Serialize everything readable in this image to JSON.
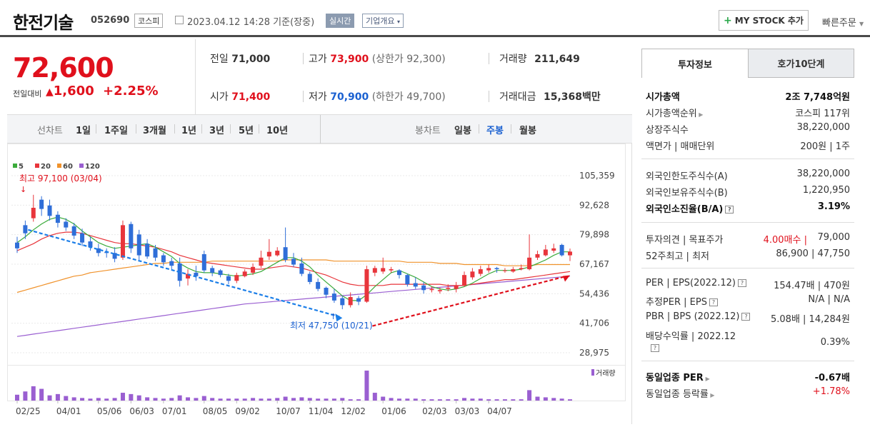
{
  "header": {
    "name": "한전기술",
    "code": "052690",
    "market": "코스피",
    "datetime": "2023.04.12 14:28",
    "basis": "기준(장중)",
    "realtime": "실시간",
    "corp_info": "기업개요",
    "mystock": "MY STOCK 추가",
    "quick_order": "빠른주문"
  },
  "price": {
    "current": "72,600",
    "change_label": "전일대비",
    "change": "1,600",
    "change_pct": "+2.25%"
  },
  "summary": {
    "prev_label": "전일",
    "prev": "71,000",
    "high_label": "고가",
    "high": "73,900",
    "upper_limit": "(상한가 92,300)",
    "volume_label": "거래량",
    "volume": "211,649",
    "open_label": "시가",
    "open": "71,400",
    "low_label": "저가",
    "low": "70,900",
    "lower_limit": "(하한가 49,700)",
    "amount_label": "거래대금",
    "amount": "15,368",
    "amount_unit": "백만"
  },
  "chart_tabs": {
    "line_label": "선차트",
    "periods": [
      "1일",
      "1주일",
      "3개월",
      "1년",
      "3년",
      "5년",
      "10년"
    ],
    "candle_label": "봉차트",
    "candles": [
      "일봉",
      "주봉",
      "월봉"
    ],
    "active_candle": "주봉"
  },
  "chart_data": {
    "type": "line",
    "legend": [
      "5",
      "20",
      "60",
      "120"
    ],
    "legend_colors": [
      "#3bab3b",
      "#e8353b",
      "#f0922b",
      "#9a5fd1"
    ],
    "y_ticks": [
      "105,359",
      "92,628",
      "79,898",
      "67,167",
      "54,436",
      "41,706",
      "28,975"
    ],
    "ylim": [
      28975,
      105359
    ],
    "x_ticks": [
      "02/25",
      "04/01",
      "05/06",
      "06/03",
      "07/01",
      "08/05",
      "09/02",
      "10/07",
      "11/04",
      "12/02",
      "01/06",
      "02/03",
      "03/03",
      "04/07"
    ],
    "high_annotation": "최고 97,100 (03/04)",
    "low_annotation": "최저 47,750 (10/21)",
    "volume_label": "거래량",
    "candles": [
      {
        "o": 76500,
        "c": 74000,
        "h": 79000,
        "l": 72000
      },
      {
        "o": 84000,
        "c": 80500,
        "h": 86000,
        "l": 78000
      },
      {
        "o": 87000,
        "c": 91500,
        "h": 97100,
        "l": 85500
      },
      {
        "o": 95000,
        "c": 91000,
        "h": 96500,
        "l": 88000
      },
      {
        "o": 92500,
        "c": 88000,
        "h": 95000,
        "l": 86000
      },
      {
        "o": 88500,
        "c": 85000,
        "h": 90000,
        "l": 83000
      },
      {
        "o": 85500,
        "c": 83000,
        "h": 87000,
        "l": 81500
      },
      {
        "o": 83500,
        "c": 79500,
        "h": 85000,
        "l": 78000
      },
      {
        "o": 80500,
        "c": 76500,
        "h": 82500,
        "l": 75000
      },
      {
        "o": 77000,
        "c": 74500,
        "h": 79000,
        "l": 73000
      },
      {
        "o": 74000,
        "c": 72000,
        "h": 76000,
        "l": 70500
      },
      {
        "o": 72500,
        "c": 72000,
        "h": 74000,
        "l": 70000
      },
      {
        "o": 72000,
        "c": 69500,
        "h": 74500,
        "l": 68000
      },
      {
        "o": 70000,
        "c": 84000,
        "h": 86000,
        "l": 69000
      },
      {
        "o": 84500,
        "c": 74000,
        "h": 85500,
        "l": 72000
      },
      {
        "o": 80000,
        "c": 71000,
        "h": 82000,
        "l": 69000
      },
      {
        "o": 76000,
        "c": 70500,
        "h": 78000,
        "l": 69500
      },
      {
        "o": 74000,
        "c": 70000,
        "h": 75500,
        "l": 68500
      },
      {
        "o": 71000,
        "c": 68000,
        "h": 72000,
        "l": 66500
      },
      {
        "o": 68500,
        "c": 66500,
        "h": 70000,
        "l": 65000
      },
      {
        "o": 67500,
        "c": 60000,
        "h": 70000,
        "l": 57500
      },
      {
        "o": 61000,
        "c": 63000,
        "h": 65000,
        "l": 58000
      },
      {
        "o": 63500,
        "c": 62000,
        "h": 66500,
        "l": 60000
      },
      {
        "o": 71500,
        "c": 64500,
        "h": 73000,
        "l": 63500
      },
      {
        "o": 65500,
        "c": 63500,
        "h": 66500,
        "l": 62000
      },
      {
        "o": 64500,
        "c": 62500,
        "h": 65000,
        "l": 61500
      },
      {
        "o": 62000,
        "c": 60000,
        "h": 63000,
        "l": 58500
      },
      {
        "o": 60000,
        "c": 62500,
        "h": 63500,
        "l": 59000
      },
      {
        "o": 62000,
        "c": 64000,
        "h": 65000,
        "l": 61500
      },
      {
        "o": 63500,
        "c": 66000,
        "h": 67500,
        "l": 62500
      },
      {
        "o": 66500,
        "c": 70000,
        "h": 73000,
        "l": 65500
      },
      {
        "o": 70500,
        "c": 72500,
        "h": 78000,
        "l": 69000
      },
      {
        "o": 71000,
        "c": 73000,
        "h": 74500,
        "l": 70500
      },
      {
        "o": 74500,
        "c": 69000,
        "h": 83000,
        "l": 68000
      },
      {
        "o": 69500,
        "c": 67000,
        "h": 72000,
        "l": 66000
      },
      {
        "o": 67500,
        "c": 63000,
        "h": 70000,
        "l": 62000
      },
      {
        "o": 63000,
        "c": 59500,
        "h": 64000,
        "l": 58500
      },
      {
        "o": 59500,
        "c": 56500,
        "h": 61000,
        "l": 55500
      },
      {
        "o": 57000,
        "c": 54000,
        "h": 57500,
        "l": 52500
      },
      {
        "o": 54500,
        "c": 51500,
        "h": 56500,
        "l": 50500
      },
      {
        "o": 52500,
        "c": 49500,
        "h": 53500,
        "l": 47750
      },
      {
        "o": 49500,
        "c": 53000,
        "h": 55000,
        "l": 48500
      },
      {
        "o": 52500,
        "c": 51000,
        "h": 53500,
        "l": 49500
      },
      {
        "o": 51000,
        "c": 65000,
        "h": 66500,
        "l": 50500
      },
      {
        "o": 63500,
        "c": 65500,
        "h": 66500,
        "l": 62000
      },
      {
        "o": 64000,
        "c": 65500,
        "h": 70000,
        "l": 63000
      },
      {
        "o": 64500,
        "c": 65000,
        "h": 66000,
        "l": 63500
      },
      {
        "o": 64500,
        "c": 62500,
        "h": 65000,
        "l": 61000
      },
      {
        "o": 62500,
        "c": 58500,
        "h": 63000,
        "l": 57500
      },
      {
        "o": 59000,
        "c": 57500,
        "h": 61500,
        "l": 56500
      },
      {
        "o": 58000,
        "c": 56000,
        "h": 59500,
        "l": 54500
      },
      {
        "o": 56000,
        "c": 56500,
        "h": 57500,
        "l": 55000
      },
      {
        "o": 55500,
        "c": 56000,
        "h": 57000,
        "l": 54500
      },
      {
        "o": 56500,
        "c": 57000,
        "h": 58500,
        "l": 55500
      },
      {
        "o": 56500,
        "c": 58000,
        "h": 59500,
        "l": 55000
      },
      {
        "o": 58000,
        "c": 62500,
        "h": 64000,
        "l": 57500
      },
      {
        "o": 61500,
        "c": 64000,
        "h": 65500,
        "l": 60500
      },
      {
        "o": 63000,
        "c": 65000,
        "h": 66500,
        "l": 62000
      },
      {
        "o": 64500,
        "c": 65500,
        "h": 67000,
        "l": 63500
      },
      {
        "o": 65500,
        "c": 65000,
        "h": 66000,
        "l": 63500
      },
      {
        "o": 64500,
        "c": 64500,
        "h": 65500,
        "l": 63500
      },
      {
        "o": 64000,
        "c": 65000,
        "h": 66000,
        "l": 63500
      },
      {
        "o": 65000,
        "c": 65500,
        "h": 67000,
        "l": 64500
      },
      {
        "o": 65000,
        "c": 70000,
        "h": 80000,
        "l": 64500
      },
      {
        "o": 70000,
        "c": 71500,
        "h": 73000,
        "l": 69000
      },
      {
        "o": 71000,
        "c": 73500,
        "h": 75500,
        "l": 70500
      },
      {
        "o": 73000,
        "c": 74000,
        "h": 76000,
        "l": 72000
      },
      {
        "o": 75500,
        "c": 71000,
        "h": 76000,
        "l": 70500
      },
      {
        "o": 71000,
        "c": 72600,
        "h": 73900,
        "l": 68500
      }
    ],
    "ma5": [
      76500,
      79000,
      82000,
      84500,
      86500,
      87500,
      86500,
      84500,
      81500,
      79000,
      76500,
      75000,
      74000,
      74500,
      75000,
      75500,
      76000,
      74500,
      72500,
      70500,
      67500,
      65500,
      64000,
      63500,
      63500,
      63000,
      62500,
      62000,
      62500,
      63000,
      64000,
      66000,
      68000,
      70000,
      70000,
      68500,
      66000,
      62500,
      59500,
      56500,
      53500,
      51500,
      51500,
      54000,
      57500,
      60500,
      63500,
      64500,
      63000,
      61500,
      59500,
      57500,
      56500,
      56000,
      56500,
      57500,
      59000,
      61000,
      63000,
      64500,
      64500,
      64500,
      65000,
      66000,
      67500,
      69000,
      71000,
      72500,
      72500
    ],
    "ma20": [
      73000,
      74500,
      76000,
      78000,
      79500,
      80500,
      81000,
      81000,
      80500,
      79500,
      78500,
      77500,
      76500,
      76000,
      76000,
      75500,
      75000,
      74500,
      73500,
      72500,
      71000,
      70000,
      69000,
      68000,
      67500,
      67000,
      66500,
      66000,
      65500,
      65000,
      65000,
      65500,
      66000,
      66500,
      66000,
      65500,
      64500,
      63500,
      62500,
      61000,
      59500,
      58500,
      58000,
      58000,
      58000,
      58000,
      58500,
      58500,
      58500,
      58500,
      58500,
      58500,
      58500,
      58000,
      58000,
      58000,
      58500,
      59000,
      59500,
      60000,
      60500,
      60500,
      61000,
      61500,
      62000,
      62500,
      63000,
      63500,
      64000
    ],
    "ma60": [
      55000,
      56000,
      57000,
      58000,
      59000,
      60000,
      61000,
      62000,
      62500,
      63500,
      64000,
      64500,
      65000,
      65500,
      66000,
      66500,
      67000,
      67500,
      67500,
      68000,
      68000,
      68000,
      68000,
      68000,
      68500,
      68500,
      68500,
      68500,
      68500,
      68500,
      68500,
      68500,
      68500,
      69000,
      69000,
      69000,
      69000,
      69000,
      69000,
      68500,
      68500,
      68500,
      68500,
      68500,
      68500,
      68500,
      68500,
      68500,
      68000,
      68000,
      68000,
      68000,
      67500,
      67500,
      67500,
      67000,
      67000,
      67000,
      67000,
      67000,
      66500,
      66500,
      66500,
      66500,
      67000,
      67000,
      67000,
      67000,
      67000
    ],
    "ma120": [
      36000,
      36500,
      37000,
      37500,
      38000,
      38500,
      39000,
      39500,
      40000,
      40500,
      41000,
      41500,
      42000,
      42500,
      43000,
      43500,
      44000,
      44500,
      45000,
      45500,
      46000,
      46500,
      47000,
      47500,
      48000,
      48500,
      49000,
      49500,
      50000,
      50300,
      50600,
      50900,
      51200,
      51500,
      51800,
      52100,
      52400,
      52700,
      53000,
      53300,
      53600,
      53900,
      54200,
      54500,
      54800,
      55100,
      55400,
      55700,
      56000,
      56300,
      56600,
      56900,
      57200,
      57500,
      57800,
      58100,
      58400,
      58700,
      59000,
      59300,
      59600,
      59900,
      60200,
      60500,
      60800,
      61100,
      61400,
      61700,
      62000
    ],
    "volumes": [
      9,
      14,
      22,
      18,
      8,
      10,
      7,
      5,
      4,
      3,
      4,
      3,
      4,
      12,
      10,
      8,
      5,
      4,
      3,
      4,
      8,
      5,
      4,
      7,
      4,
      3,
      3,
      3,
      3,
      4,
      3,
      3,
      4,
      6,
      4,
      5,
      4,
      3,
      3,
      3,
      4,
      2,
      2,
      46,
      12,
      6,
      4,
      3,
      3,
      3,
      2,
      2,
      2,
      2,
      2,
      4,
      3,
      3,
      2,
      2,
      2,
      2,
      2,
      16,
      6,
      5,
      4,
      3,
      2
    ]
  },
  "right_panel": {
    "tab1": "투자정보",
    "tab2": "호가10단계",
    "rows": [
      {
        "k": "시가총액",
        "v": "2조 7,748억원",
        "bold": true
      },
      {
        "k": "시가총액순위",
        "v": "코스피 117위"
      },
      {
        "k": "상장주식수",
        "v": "38,220,000"
      },
      {
        "k": "액면가 | 매매단위",
        "v": "200원 | 1주"
      },
      {
        "k": "외국인한도주식수(A)",
        "v": "38,220,000"
      },
      {
        "k": "외국인보유주식수(B)",
        "v": "1,220,950"
      },
      {
        "k": "외국인소진율(B/A)",
        "v": "3.19%",
        "bold": true
      },
      {
        "k": "투자의견 | 목표주가",
        "v1": "4.00매수",
        "v": "79,000"
      },
      {
        "k": "52주최고 | 최저",
        "v": "86,900 | 47,750"
      },
      {
        "k": "PER | EPS(2022.12)",
        "v": "154.47배 | 470원"
      },
      {
        "k": "추정PER | EPS",
        "v": "N/A | N/A"
      },
      {
        "k": "PBR | BPS (2022.12)",
        "v": "5.08배 | 14,284원"
      },
      {
        "k": "배당수익률 | 2022.12",
        "v": "0.39%"
      },
      {
        "k": "동일업종 PER",
        "v": "-0.67배",
        "bold": true
      },
      {
        "k": "동일업종 등락률",
        "v": "+1.78%"
      }
    ]
  }
}
